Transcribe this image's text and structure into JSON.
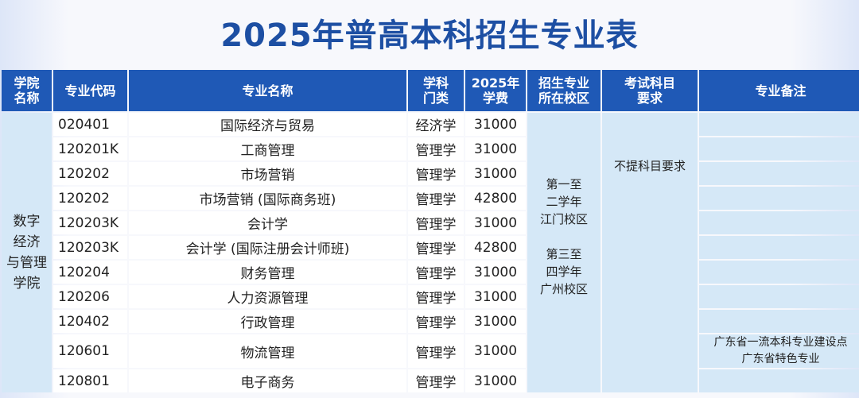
{
  "title": "2025年普高本科招生专业表",
  "headers": {
    "college": [
      "学院",
      "名称"
    ],
    "code": "专业代码",
    "name": "专业名称",
    "category": [
      "学科",
      "门类"
    ],
    "fee": [
      "2025年",
      "学费"
    ],
    "campus": [
      "招生专业",
      "所在校区"
    ],
    "requirement": [
      "考试科目",
      "要求"
    ],
    "note": "专业备注"
  },
  "college": [
    "数字",
    "经济",
    "与管理",
    "学院"
  ],
  "campus": [
    "第一至",
    "二学年",
    "江门校区",
    "",
    "第三至",
    "四学年",
    "广州校区"
  ],
  "requirement": "不提科目要求",
  "rows": [
    {
      "code": "020401",
      "name": "国际经济与贸易",
      "category": "经济学",
      "fee": "31000",
      "note": ""
    },
    {
      "code": "120201K",
      "name": "工商管理",
      "category": "管理学",
      "fee": "31000",
      "note": ""
    },
    {
      "code": "120202",
      "name": "市场营销",
      "category": "管理学",
      "fee": "31000",
      "note": ""
    },
    {
      "code": "120202",
      "name": "市场营销 (国际商务班)",
      "category": "管理学",
      "fee": "42800",
      "note": ""
    },
    {
      "code": "120203K",
      "name": "会计学",
      "category": "管理学",
      "fee": "31000",
      "note": ""
    },
    {
      "code": "120203K",
      "name": "会计学 (国际注册会计师班)",
      "category": "管理学",
      "fee": "42800",
      "note": ""
    },
    {
      "code": "120204",
      "name": "财务管理",
      "category": "管理学",
      "fee": "31000",
      "note": ""
    },
    {
      "code": "120206",
      "name": "人力资源管理",
      "category": "管理学",
      "fee": "31000",
      "note": ""
    },
    {
      "code": "120402",
      "name": "行政管理",
      "category": "管理学",
      "fee": "31000",
      "note": ""
    },
    {
      "code": "120601",
      "name": "物流管理",
      "category": "管理学",
      "fee": "31000",
      "note": "广东省一流本科专业建设点\n广东省特色专业"
    },
    {
      "code": "120801",
      "name": "电子商务",
      "category": "管理学",
      "fee": "31000",
      "note": ""
    }
  ]
}
